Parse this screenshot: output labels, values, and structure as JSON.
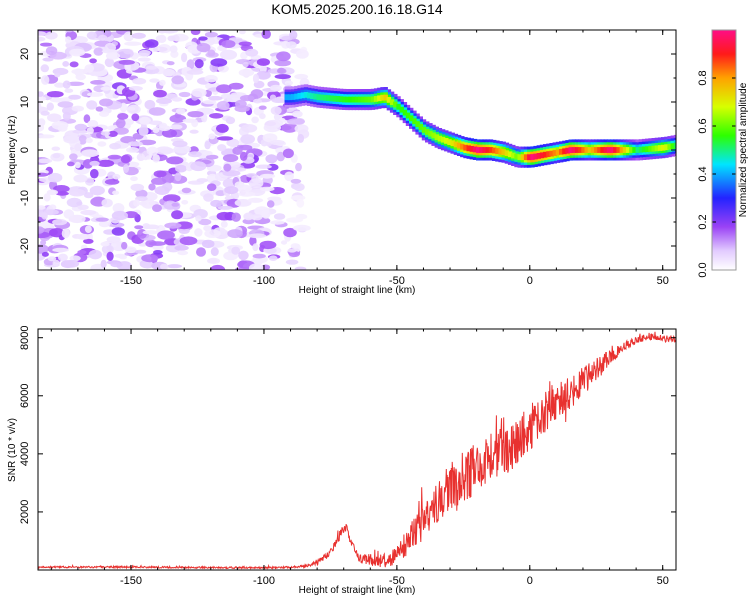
{
  "title": "KOM5.2025.200.16.18.G14",
  "chart_data": [
    {
      "type": "heatmap",
      "xlabel": "Height of straight line (km)",
      "ylabel": "Frequency (Hz)",
      "xlim": [
        -185,
        55
      ],
      "ylim": [
        -25,
        25
      ],
      "xticks": [
        -150,
        -100,
        -50,
        0,
        50
      ],
      "yticks": [
        -20,
        -10,
        0,
        10,
        20
      ],
      "colorbar": {
        "label": "Normalized spectral amplitude",
        "range": [
          0,
          1
        ],
        "ticks": [
          "0.0",
          "0.2",
          "0.4",
          "0.6",
          "0.8"
        ],
        "tick_values": [
          0.0,
          0.2,
          0.4,
          0.6,
          0.8
        ],
        "colormap": "white-purple-blue-cyan-green-yellow-orange-red-magenta"
      },
      "noise_region": {
        "x_from": -185,
        "x_to": -83,
        "f_from": -25,
        "f_to": 25,
        "amplitude_max": 0.2
      },
      "signal_ridge": [
        {
          "x": -90,
          "f": 11
        },
        {
          "x": -85,
          "f": 11.5
        },
        {
          "x": -80,
          "f": 11
        },
        {
          "x": -70,
          "f": 10.5
        },
        {
          "x": -60,
          "f": 10.5
        },
        {
          "x": -55,
          "f": 11
        },
        {
          "x": -50,
          "f": 9
        },
        {
          "x": -45,
          "f": 6.5
        },
        {
          "x": -40,
          "f": 4
        },
        {
          "x": -35,
          "f": 2.5
        },
        {
          "x": -30,
          "f": 1.5
        },
        {
          "x": -25,
          "f": 0.5
        },
        {
          "x": -20,
          "f": 0
        },
        {
          "x": -15,
          "f": 0
        },
        {
          "x": -10,
          "f": -0.5
        },
        {
          "x": -5,
          "f": -1.5
        },
        {
          "x": 0,
          "f": -1.5
        },
        {
          "x": 5,
          "f": -1
        },
        {
          "x": 10,
          "f": -0.5
        },
        {
          "x": 15,
          "f": 0
        },
        {
          "x": 20,
          "f": 0
        },
        {
          "x": 25,
          "f": 0
        },
        {
          "x": 30,
          "f": 0
        },
        {
          "x": 40,
          "f": 0
        },
        {
          "x": 50,
          "f": 0.5
        },
        {
          "x": 55,
          "f": 1
        }
      ],
      "signal_amplitude": [
        {
          "x": -90,
          "a": 0.4
        },
        {
          "x": -80,
          "a": 0.5
        },
        {
          "x": -70,
          "a": 0.55
        },
        {
          "x": -60,
          "a": 0.6
        },
        {
          "x": -55,
          "a": 0.75
        },
        {
          "x": -50,
          "a": 0.55
        },
        {
          "x": -40,
          "a": 0.6
        },
        {
          "x": -30,
          "a": 0.7
        },
        {
          "x": -20,
          "a": 1.0
        },
        {
          "x": -12,
          "a": 0.8
        },
        {
          "x": -5,
          "a": 0.6
        },
        {
          "x": 0,
          "a": 1.0
        },
        {
          "x": 10,
          "a": 0.8
        },
        {
          "x": 15,
          "a": 1.0
        },
        {
          "x": 22,
          "a": 0.75
        },
        {
          "x": 30,
          "a": 1.0
        },
        {
          "x": 40,
          "a": 0.5
        },
        {
          "x": 50,
          "a": 0.7
        },
        {
          "x": 55,
          "a": 0.5
        }
      ]
    },
    {
      "type": "line",
      "xlabel": "Height of straight line (km)",
      "ylabel": "SNR (10 * v/v)",
      "xlim": [
        -185,
        55
      ],
      "ylim": [
        0,
        8300
      ],
      "xticks": [
        -150,
        -100,
        -50,
        0,
        50
      ],
      "yticks": [
        2000,
        4000,
        6000,
        8000
      ],
      "color": "#e8312f",
      "series": [
        {
          "x": [
            -185,
            -170,
            -150,
            -130,
            -110,
            -95,
            -85,
            -80,
            -76,
            -73,
            -71,
            -69,
            -67,
            -64,
            -60,
            -55,
            -50,
            -45,
            -40,
            -35,
            -30,
            -25,
            -20,
            -15,
            -10,
            -5,
            0,
            5,
            10,
            15,
            20,
            25,
            30,
            35,
            40,
            45,
            50,
            55
          ],
          "values": [
            100,
            100,
            100,
            90,
            80,
            80,
            120,
            250,
            500,
            900,
            1300,
            1500,
            900,
            400,
            350,
            300,
            500,
            1100,
            1600,
            2300,
            2900,
            3200,
            3500,
            3800,
            4100,
            4400,
            4900,
            5400,
            5700,
            6100,
            6500,
            6900,
            7300,
            7700,
            7900,
            8050,
            8000,
            7950
          ],
          "noise": [
            30,
            30,
            30,
            30,
            30,
            30,
            40,
            80,
            120,
            150,
            150,
            150,
            150,
            150,
            200,
            250,
            300,
            500,
            600,
            700,
            800,
            900,
            900,
            900,
            900,
            800,
            800,
            700,
            700,
            600,
            500,
            400,
            300,
            150,
            120,
            120,
            120,
            120
          ]
        }
      ]
    }
  ]
}
